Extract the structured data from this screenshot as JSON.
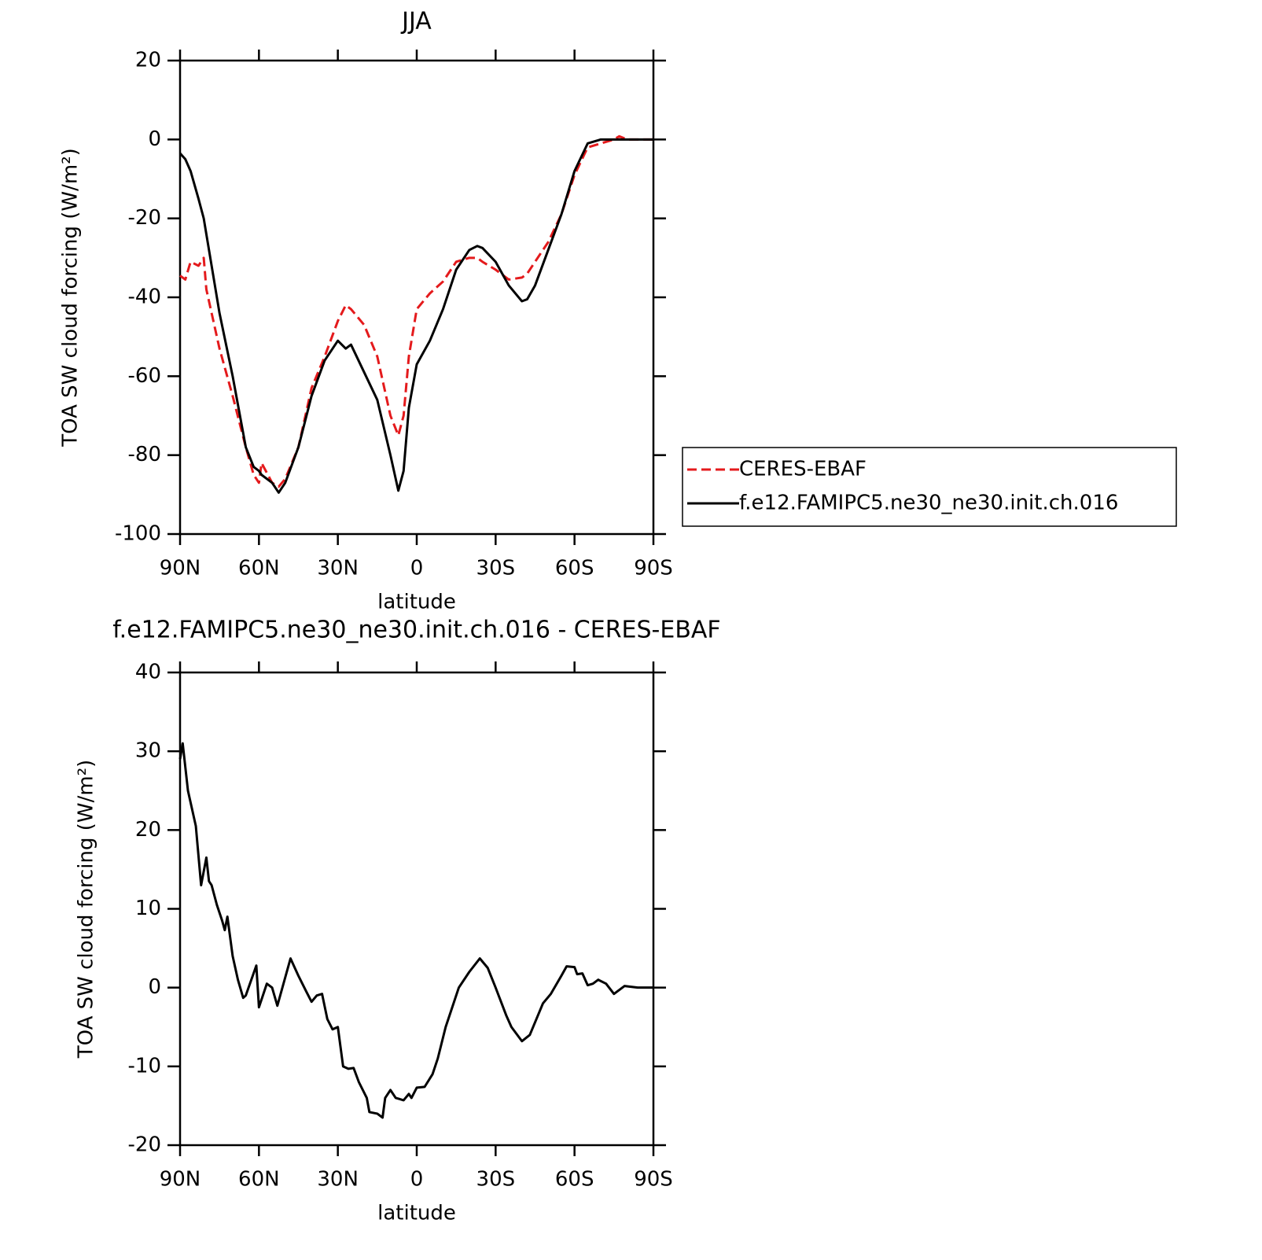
{
  "chart_data": [
    {
      "type": "line",
      "title": "JJA",
      "xlabel": "latitude",
      "ylabel": "TOA SW cloud forcing (W/m²)",
      "x": [
        90,
        88,
        86,
        83,
        81,
        80,
        75,
        70,
        65,
        62,
        60,
        59,
        55,
        52.5,
        50,
        45,
        40,
        35,
        30,
        27,
        25,
        20,
        15,
        10,
        7,
        5,
        3,
        0,
        -5,
        -10,
        -15,
        -20,
        -23,
        -25,
        -30,
        -35,
        -40,
        -42,
        -45,
        -50,
        -55,
        -60,
        -65,
        -70,
        -75,
        -77,
        -80,
        -85,
        -90
      ],
      "xlim": [
        90,
        -90
      ],
      "xticks": [
        {
          "value": 90,
          "label": "90N"
        },
        {
          "value": 60,
          "label": "60N"
        },
        {
          "value": 30,
          "label": "30N"
        },
        0,
        {
          "value": -30,
          "label": "30S"
        },
        {
          "value": -60,
          "label": "60S"
        },
        {
          "value": -90,
          "label": "90S"
        }
      ],
      "ylim": [
        -100,
        20
      ],
      "yticks": [
        -100,
        -80,
        -60,
        -40,
        -20,
        0,
        20
      ],
      "legend": "right",
      "series": [
        {
          "name": "CERES-EBAF",
          "color": "#e41a1c",
          "line_style": "dashed",
          "values": [
            -34.5,
            -35.5,
            -31,
            -32,
            -30,
            -38,
            -53,
            -65,
            -78,
            -85,
            -87,
            -82,
            -87,
            -88,
            -86,
            -78,
            -63,
            -55,
            -46,
            -42,
            -43,
            -47,
            -55,
            -70,
            -75,
            -70,
            -55,
            -43,
            -39,
            -36,
            -31,
            -30,
            -30,
            -31,
            -33,
            -35.5,
            -35,
            -34,
            -31,
            -26,
            -19,
            -9,
            -2,
            -1,
            0,
            0.8,
            0,
            0,
            0
          ]
        },
        {
          "name": "f.e12.FAMIPC5.ne30_ne30.init.ch.016",
          "color": "#000000",
          "line_style": "solid",
          "values": [
            -3.5,
            -5,
            -8,
            -15,
            -20,
            -24,
            -44,
            -60,
            -78,
            -83,
            -84,
            -85,
            -87,
            -89.5,
            -87,
            -78,
            -65,
            -56,
            -51,
            -53,
            -52,
            -59,
            -66,
            -80,
            -89,
            -84,
            -68,
            -57,
            -51,
            -43,
            -33,
            -28,
            -27,
            -27.5,
            -31,
            -37,
            -41,
            -40.5,
            -37,
            -28,
            -19,
            -8,
            -1,
            0,
            0,
            0,
            0,
            0,
            0
          ]
        }
      ]
    },
    {
      "type": "line",
      "title": "f.e12.FAMIPC5.ne30_ne30.init.ch.016 - CERES-EBAF",
      "xlabel": "latitude",
      "ylabel": "TOA SW cloud forcing (W/m²)",
      "x": [
        90,
        89,
        87,
        84,
        82,
        80,
        79,
        78,
        76,
        74,
        73,
        72,
        70,
        68,
        66,
        65,
        61,
        60,
        57,
        55,
        53,
        48,
        45,
        42,
        40,
        38,
        36,
        34,
        32,
        30,
        28,
        26,
        24,
        22,
        19,
        18,
        15,
        13,
        12,
        10,
        8,
        5,
        3,
        2,
        0,
        -3,
        -6,
        -8,
        -11,
        -13,
        -16,
        -20,
        -24,
        -27,
        -30,
        -34,
        -36,
        -40,
        -43,
        -48,
        -51,
        -55,
        -57,
        -60,
        -61,
        -63,
        -65,
        -67,
        -69,
        -72,
        -75,
        -79,
        -84,
        -90
      ],
      "xlim": [
        90,
        -90
      ],
      "xticks": [
        {
          "value": 90,
          "label": "90N"
        },
        {
          "value": 60,
          "label": "60N"
        },
        {
          "value": 30,
          "label": "30N"
        },
        0,
        {
          "value": -30,
          "label": "30S"
        },
        {
          "value": -60,
          "label": "60S"
        },
        {
          "value": -90,
          "label": "90S"
        }
      ],
      "ylim": [
        -20,
        40
      ],
      "yticks": [
        -20,
        -10,
        0,
        10,
        20,
        30,
        40
      ],
      "series": [
        {
          "name": "f.e12.FAMIPC5.ne30_ne30.init.ch.016 - CERES-EBAF",
          "color": "#000000",
          "line_style": "solid",
          "values": [
            29,
            31,
            25,
            20.5,
            13,
            16.5,
            13.5,
            13,
            10.5,
            8.5,
            7.3,
            9,
            4,
            1,
            -1.3,
            -1,
            2.8,
            -2.5,
            0.5,
            0,
            -2.3,
            3.7,
            1.5,
            -0.5,
            -1.8,
            -1,
            -0.8,
            -4,
            -5.3,
            -5,
            -10,
            -10.3,
            -10.2,
            -12,
            -14,
            -15.8,
            -16,
            -16.5,
            -14,
            -13,
            -14,
            -14.3,
            -13.5,
            -14,
            -12.7,
            -12.6,
            -11,
            -9,
            -5,
            -3,
            0,
            2,
            3.7,
            2.5,
            0,
            -3.5,
            -5,
            -6.8,
            -6,
            -2,
            -0.8,
            1.5,
            2.7,
            2.6,
            1.7,
            1.8,
            0.3,
            0.5,
            1,
            0.5,
            -0.8,
            0.2,
            0,
            0
          ]
        }
      ]
    }
  ]
}
